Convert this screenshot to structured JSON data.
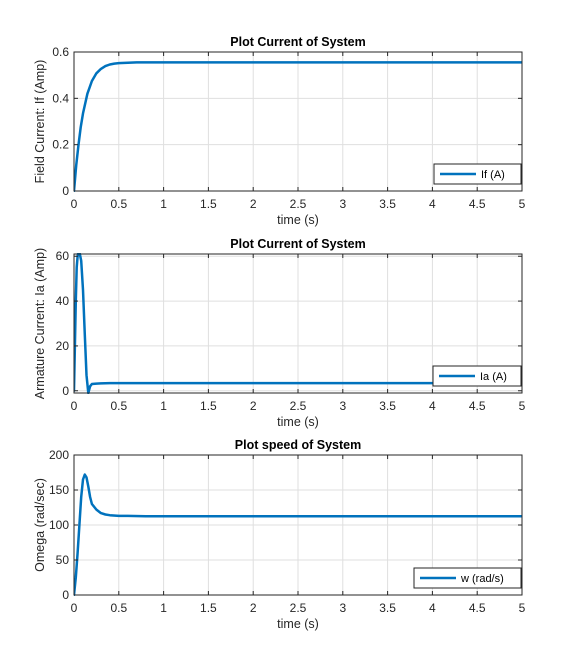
{
  "colors": {
    "series": "#0072bd",
    "axis": "#262626",
    "grid": "#dfdfdf",
    "background": "#ffffff"
  },
  "chart_data": [
    {
      "type": "line",
      "title": "Plot Current of System",
      "xlabel": "time (s)",
      "ylabel": "Field Current: If (Amp)",
      "xlim": [
        0,
        5
      ],
      "ylim": [
        0,
        0.6
      ],
      "xticks": [
        "0",
        "0.5",
        "1",
        "1.5",
        "2",
        "2.5",
        "3",
        "3.5",
        "4",
        "4.5",
        "5"
      ],
      "yticks": [
        "0",
        "0.2",
        "0.4",
        "0.6"
      ],
      "grid": true,
      "legend_position": "bottom-right",
      "series": [
        {
          "name": "If (A)",
          "x": [
            0,
            0.025,
            0.05,
            0.075,
            0.1,
            0.15,
            0.2,
            0.25,
            0.3,
            0.35,
            0.4,
            0.45,
            0.5,
            0.6,
            0.7,
            0.8,
            1,
            1.5,
            2,
            3,
            4,
            5
          ],
          "y": [
            0,
            0.11,
            0.2,
            0.275,
            0.335,
            0.42,
            0.475,
            0.508,
            0.527,
            0.539,
            0.546,
            0.55,
            0.552,
            0.554,
            0.555,
            0.555,
            0.555,
            0.555,
            0.555,
            0.555,
            0.555,
            0.555
          ]
        }
      ]
    },
    {
      "type": "line",
      "title": "Plot Current of System",
      "xlabel": "time (s)",
      "ylabel": "Armature Current: Ia (Amp)",
      "xlim": [
        0,
        5
      ],
      "ylim": [
        -1,
        61
      ],
      "xticks": [
        "0",
        "0.5",
        "1",
        "1.5",
        "2",
        "2.5",
        "3",
        "3.5",
        "4",
        "4.5",
        "5"
      ],
      "yticks": [
        "0",
        "20",
        "40",
        "60"
      ],
      "grid": true,
      "legend_position": "bottom-right",
      "series": [
        {
          "name": "Ia (A)",
          "x": [
            0,
            0.01,
            0.02,
            0.03,
            0.04,
            0.05,
            0.06,
            0.08,
            0.1,
            0.12,
            0.14,
            0.16,
            0.18,
            0.2,
            0.25,
            0.3,
            0.4,
            0.5,
            1,
            2,
            3,
            4,
            5
          ],
          "y": [
            0,
            20,
            40,
            55,
            60,
            62,
            62,
            58,
            45,
            25,
            7,
            -1,
            2,
            3,
            3.2,
            3.3,
            3.4,
            3.4,
            3.4,
            3.4,
            3.4,
            3.4,
            3.4
          ]
        }
      ]
    },
    {
      "type": "line",
      "title": "Plot speed of System",
      "xlabel": "time (s)",
      "ylabel": "Omega (rad/sec)",
      "xlim": [
        0,
        5
      ],
      "ylim": [
        0,
        200
      ],
      "xticks": [
        "0",
        "0.5",
        "1",
        "1.5",
        "2",
        "2.5",
        "3",
        "3.5",
        "4",
        "4.5",
        "5"
      ],
      "yticks": [
        "0",
        "50",
        "100",
        "150",
        "200"
      ],
      "grid": true,
      "legend_position": "bottom-right",
      "series": [
        {
          "name": "w (rad/s)",
          "x": [
            0,
            0.02,
            0.04,
            0.06,
            0.08,
            0.1,
            0.12,
            0.14,
            0.16,
            0.18,
            0.2,
            0.25,
            0.3,
            0.35,
            0.4,
            0.5,
            0.6,
            0.8,
            1,
            2,
            3,
            4,
            5
          ],
          "y": [
            0,
            25,
            60,
            100,
            140,
            165,
            172,
            168,
            155,
            140,
            130,
            122,
            117,
            115,
            114,
            113,
            113,
            112.5,
            112.5,
            112.5,
            112.5,
            112.5,
            112.5
          ]
        }
      ]
    }
  ]
}
